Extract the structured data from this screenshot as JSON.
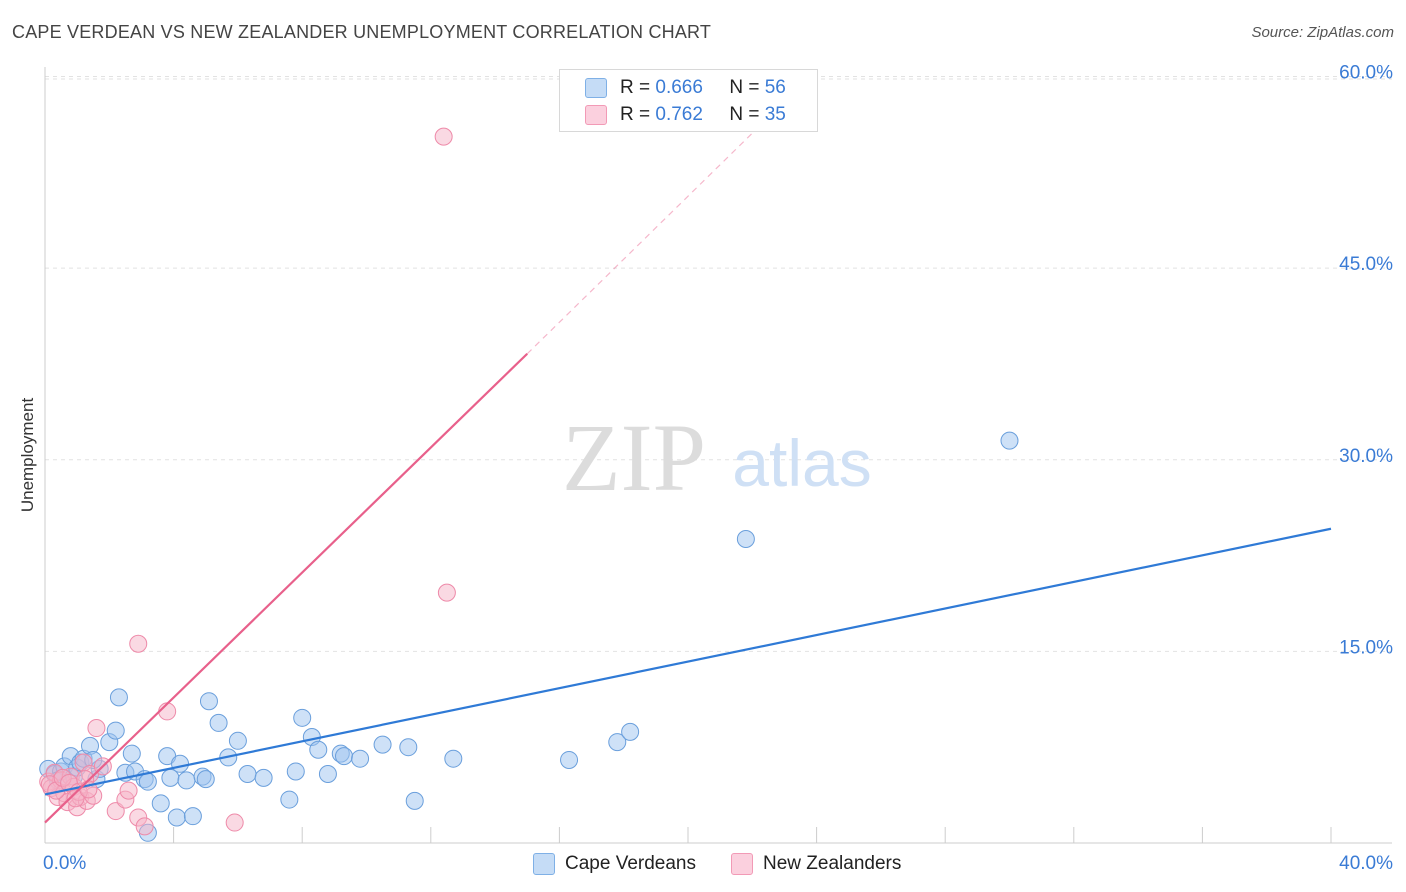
{
  "title": "CAPE VERDEAN VS NEW ZEALANDER UNEMPLOYMENT CORRELATION CHART",
  "source": "Source: ZipAtlas.com",
  "watermark": {
    "zip": "ZIP",
    "atlas": "atlas"
  },
  "legend_top": [
    {
      "r_label": "R =",
      "r_value": "0.666",
      "n_label": "N =",
      "n_value": "56",
      "color": "#9ec4f0"
    },
    {
      "r_label": "R =",
      "r_value": "0.762",
      "n_label": "N =",
      "n_value": "35",
      "color": "#f6b3c8"
    }
  ],
  "legend_bottom": [
    {
      "label": "Cape Verdeans",
      "color": "#9ec4f0"
    },
    {
      "label": "New Zealanders",
      "color": "#f6b3c8"
    }
  ],
  "chart_data": {
    "type": "scatter",
    "title": "CAPE VERDEAN VS NEW ZEALANDER UNEMPLOYMENT CORRELATION CHART",
    "xlabel": "",
    "ylabel": "Unemployment",
    "xlim": [
      0,
      40
    ],
    "ylim": [
      0,
      62
    ],
    "x_tick_labels": [
      "0.0%",
      "40.0%"
    ],
    "y_ticks": [
      15,
      30,
      45,
      60
    ],
    "y_tick_labels": [
      "15.0%",
      "30.0%",
      "45.0%",
      "60.0%"
    ],
    "grid": true,
    "series": [
      {
        "name": "Cape Verdeans",
        "color": "#9ec4f0",
        "stroke": "#6a9fdc",
        "line_color": "#2f7ad6",
        "trend": {
          "x": [
            0,
            40
          ],
          "y": [
            3.8,
            24.6
          ],
          "dashed_to": null
        },
        "points": [
          [
            0.1,
            5.8
          ],
          [
            0.3,
            5.4
          ],
          [
            0.5,
            5.6
          ],
          [
            0.6,
            6.0
          ],
          [
            0.8,
            6.8
          ],
          [
            0.9,
            5.2
          ],
          [
            1.0,
            5.9
          ],
          [
            1.1,
            6.3
          ],
          [
            1.2,
            6.6
          ],
          [
            1.4,
            7.6
          ],
          [
            1.6,
            5.0
          ],
          [
            1.7,
            5.8
          ],
          [
            2.0,
            7.9
          ],
          [
            2.2,
            8.8
          ],
          [
            2.3,
            11.4
          ],
          [
            2.5,
            5.5
          ],
          [
            2.7,
            7.0
          ],
          [
            2.8,
            5.6
          ],
          [
            3.1,
            5.0
          ],
          [
            3.2,
            4.8
          ],
          [
            3.6,
            3.1
          ],
          [
            3.8,
            6.8
          ],
          [
            3.9,
            5.1
          ],
          [
            4.1,
            2.0
          ],
          [
            4.2,
            6.2
          ],
          [
            4.4,
            4.9
          ],
          [
            4.6,
            2.1
          ],
          [
            4.9,
            5.2
          ],
          [
            5.0,
            5.0
          ],
          [
            5.1,
            11.1
          ],
          [
            5.4,
            9.4
          ],
          [
            5.7,
            6.7
          ],
          [
            6.0,
            8.0
          ],
          [
            6.3,
            5.4
          ],
          [
            6.8,
            5.1
          ],
          [
            7.6,
            3.4
          ],
          [
            7.8,
            5.6
          ],
          [
            8.0,
            9.8
          ],
          [
            8.3,
            8.3
          ],
          [
            8.5,
            7.3
          ],
          [
            8.8,
            5.4
          ],
          [
            9.2,
            7.0
          ],
          [
            9.3,
            6.8
          ],
          [
            9.8,
            6.6
          ],
          [
            10.5,
            7.7
          ],
          [
            11.3,
            7.5
          ],
          [
            11.5,
            3.3
          ],
          [
            12.7,
            6.6
          ],
          [
            16.3,
            6.5
          ],
          [
            17.8,
            7.9
          ],
          [
            18.2,
            8.7
          ],
          [
            21.8,
            23.8
          ],
          [
            30.0,
            31.5
          ],
          [
            0.4,
            4.9
          ],
          [
            1.5,
            6.5
          ],
          [
            3.2,
            0.8
          ]
        ]
      },
      {
        "name": "New Zealanders",
        "color": "#f6b3c8",
        "stroke": "#ee8aa9",
        "line_color": "#e8608b",
        "trend": {
          "x": [
            0,
            15
          ],
          "y": [
            1.6,
            38.3
          ],
          "dashed_to": [
            22.5,
            56.8
          ]
        },
        "points": [
          [
            0.1,
            4.8
          ],
          [
            0.2,
            4.3
          ],
          [
            0.3,
            5.5
          ],
          [
            0.4,
            3.6
          ],
          [
            0.5,
            4.9
          ],
          [
            0.6,
            3.9
          ],
          [
            0.7,
            3.2
          ],
          [
            0.8,
            5.2
          ],
          [
            0.9,
            4.4
          ],
          [
            1.0,
            2.8
          ],
          [
            1.1,
            3.6
          ],
          [
            1.2,
            6.3
          ],
          [
            1.3,
            3.3
          ],
          [
            1.4,
            5.4
          ],
          [
            1.5,
            3.7
          ],
          [
            1.6,
            9.0
          ],
          [
            1.8,
            6.0
          ],
          [
            2.2,
            2.5
          ],
          [
            2.5,
            3.4
          ],
          [
            2.6,
            4.1
          ],
          [
            2.9,
            15.6
          ],
          [
            2.9,
            2.0
          ],
          [
            3.1,
            1.3
          ],
          [
            3.8,
            10.3
          ],
          [
            5.9,
            1.6
          ],
          [
            12.5,
            19.6
          ],
          [
            12.4,
            55.3
          ],
          [
            0.15,
            4.6
          ],
          [
            0.35,
            4.1
          ],
          [
            0.55,
            5.1
          ],
          [
            0.75,
            4.7
          ],
          [
            1.05,
            4.0
          ],
          [
            1.25,
            5.0
          ],
          [
            0.95,
            3.5
          ],
          [
            1.35,
            4.2
          ]
        ]
      }
    ]
  }
}
